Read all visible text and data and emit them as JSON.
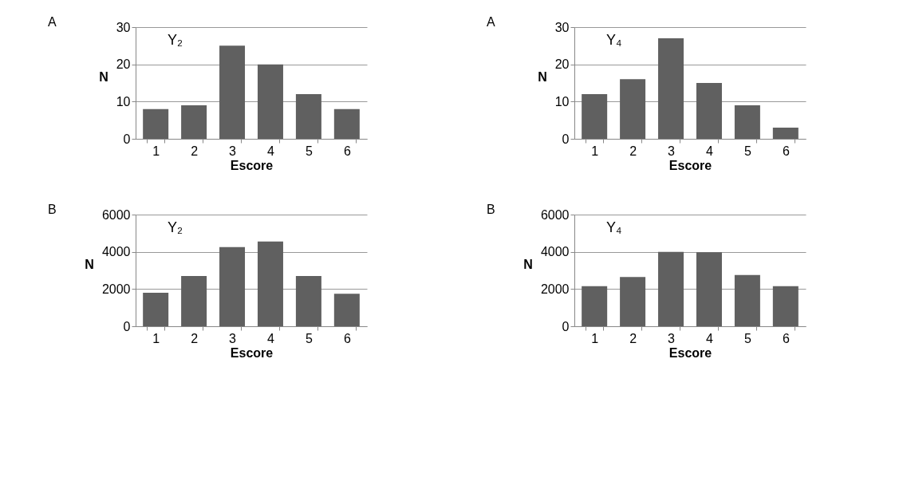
{
  "chart_data": [
    {
      "type": "bar",
      "title": "A",
      "annotations": [
        "Y₂"
      ],
      "xlabel": "Escore",
      "ylabel": "N",
      "categories": [
        "1",
        "2",
        "3",
        "4",
        "5",
        "6"
      ],
      "values": [
        8,
        9,
        25,
        20,
        12,
        8
      ],
      "color": "#606060",
      "ylim": [
        0,
        30
      ],
      "yticks": [
        0,
        10,
        20,
        30
      ],
      "grid": "y"
    },
    {
      "type": "bar",
      "title": "A",
      "annotations": [
        "Y₄"
      ],
      "xlabel": "Escore",
      "ylabel": "N",
      "categories": [
        "1",
        "2",
        "3",
        "4",
        "5",
        "6"
      ],
      "values": [
        12,
        16,
        27,
        15,
        9,
        3
      ],
      "color": "#606060",
      "ylim": [
        0,
        30
      ],
      "yticks": [
        0,
        10,
        20,
        30
      ],
      "grid": "y"
    },
    {
      "type": "bar",
      "title": "B",
      "annotations": [
        "Y₂"
      ],
      "xlabel": "Escore",
      "ylabel": "N",
      "categories": [
        "1",
        "2",
        "3",
        "4",
        "5",
        "6"
      ],
      "values": [
        1800,
        2700,
        4250,
        4550,
        2700,
        1750
      ],
      "color": "#606060",
      "ylim": [
        0,
        6000
      ],
      "yticks": [
        0,
        2000,
        4000,
        6000
      ],
      "grid": "y"
    },
    {
      "type": "bar",
      "title": "B",
      "annotations": [
        "Y₄"
      ],
      "xlabel": "Escore",
      "ylabel": "N",
      "categories": [
        "1",
        "2",
        "3",
        "4",
        "5",
        "6"
      ],
      "values": [
        2150,
        2650,
        4000,
        3970,
        2750,
        2150
      ],
      "color": "#606060",
      "ylim": [
        0,
        6000
      ],
      "yticks": [
        0,
        2000,
        4000,
        6000
      ],
      "grid": "y"
    }
  ]
}
